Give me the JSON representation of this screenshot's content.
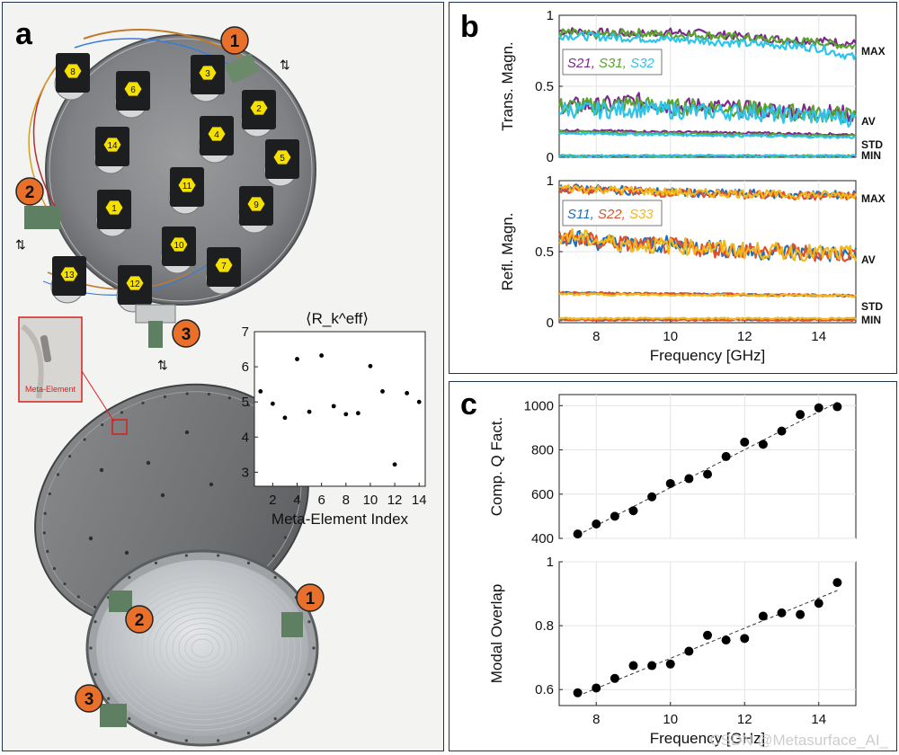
{
  "panel_a": {
    "letter": "a",
    "port_labels": [
      "1",
      "2",
      "3"
    ],
    "meta_element_label": "Meta-Element",
    "element_numbers": [
      "1",
      "2",
      "3",
      "4",
      "5",
      "6",
      "7",
      "8",
      "9",
      "10",
      "11",
      "12",
      "13",
      "14"
    ],
    "colors": {
      "port_badge": "#e8702a",
      "hex_badge": "#f5e000",
      "inset_border": "#d42020"
    }
  },
  "panel_b": {
    "letter": "b",
    "legend_trans": [
      "S21",
      "S31",
      "S32"
    ],
    "legend_refl": [
      "S11",
      "S22",
      "S33"
    ],
    "stat_labels": [
      "MAX",
      "AV",
      "STD",
      "MIN"
    ],
    "colors": {
      "S21": "#7b2a8c",
      "S31": "#5aa22c",
      "S32": "#2ec4ea",
      "S11": "#1f6fb5",
      "S22": "#e0502a",
      "S33": "#f0b81c"
    }
  },
  "panel_c": {
    "letter": "c"
  },
  "watermark": "CSDN @Metasurface_AI_",
  "chart_data": [
    {
      "type": "scatter",
      "id": "a_inset",
      "title": "⟨R_k^eff⟩",
      "xlabel": "Meta-Element Index",
      "ylabel": "",
      "x": [
        1,
        2,
        3,
        4,
        5,
        6,
        7,
        8,
        9,
        10,
        11,
        12,
        13,
        14
      ],
      "y": [
        5.3,
        4.95,
        4.55,
        6.22,
        4.72,
        6.32,
        4.88,
        4.65,
        4.68,
        6.02,
        5.3,
        3.22,
        5.25,
        5.0
      ],
      "xlim": [
        0.5,
        14.5
      ],
      "ylim": [
        2.6,
        7
      ],
      "xticks": [
        "2",
        "4",
        "6",
        "8",
        "10",
        "12",
        "14"
      ],
      "yticks": [
        "3",
        "4",
        "5",
        "6",
        "7"
      ]
    },
    {
      "type": "line",
      "id": "b_trans",
      "xlabel": "",
      "ylabel": "Trans. Magn.",
      "xlim": [
        7,
        15
      ],
      "ylim": [
        0,
        1
      ],
      "yticks": [
        "0",
        "0.5",
        "1"
      ],
      "series": [
        {
          "name": "S21 MAX",
          "x": [
            7,
            8,
            9,
            10,
            11,
            12,
            13,
            14,
            15
          ],
          "values": [
            0.89,
            0.88,
            0.87,
            0.88,
            0.87,
            0.85,
            0.83,
            0.82,
            0.8
          ]
        },
        {
          "name": "S31 MAX",
          "x": [
            7,
            8,
            9,
            10,
            11,
            12,
            13,
            14,
            15
          ],
          "values": [
            0.88,
            0.86,
            0.88,
            0.86,
            0.86,
            0.84,
            0.82,
            0.81,
            0.78
          ]
        },
        {
          "name": "S32 MAX",
          "x": [
            7,
            8,
            9,
            10,
            11,
            12,
            13,
            14,
            15
          ],
          "values": [
            0.86,
            0.85,
            0.84,
            0.83,
            0.82,
            0.8,
            0.79,
            0.77,
            0.7
          ]
        },
        {
          "name": "S21 AV",
          "x": [
            7,
            8,
            9,
            10,
            11,
            12,
            13,
            14,
            15
          ],
          "values": [
            0.37,
            0.36,
            0.4,
            0.36,
            0.36,
            0.34,
            0.33,
            0.32,
            0.3
          ]
        },
        {
          "name": "S31 AV",
          "x": [
            7,
            8,
            9,
            10,
            11,
            12,
            13,
            14,
            15
          ],
          "values": [
            0.36,
            0.36,
            0.38,
            0.35,
            0.36,
            0.34,
            0.32,
            0.31,
            0.29
          ]
        },
        {
          "name": "S32 AV",
          "x": [
            7,
            8,
            9,
            10,
            11,
            12,
            13,
            14,
            15
          ],
          "values": [
            0.34,
            0.33,
            0.34,
            0.33,
            0.32,
            0.32,
            0.3,
            0.29,
            0.27
          ]
        },
        {
          "name": "S21 STD",
          "x": [
            7,
            15
          ],
          "values": [
            0.19,
            0.16
          ]
        },
        {
          "name": "S31 STD",
          "x": [
            7,
            15
          ],
          "values": [
            0.18,
            0.15
          ]
        },
        {
          "name": "S32 STD",
          "x": [
            7,
            15
          ],
          "values": [
            0.17,
            0.14
          ]
        },
        {
          "name": "S21 MIN",
          "x": [
            7,
            15
          ],
          "values": [
            0.01,
            0.01
          ]
        },
        {
          "name": "S31 MIN",
          "x": [
            7,
            15
          ],
          "values": [
            0.01,
            0.01
          ]
        },
        {
          "name": "S32 MIN",
          "x": [
            7,
            15
          ],
          "values": [
            0.01,
            0.01
          ]
        }
      ]
    },
    {
      "type": "line",
      "id": "b_refl",
      "xlabel": "Frequency [GHz]",
      "ylabel": "Refl. Magn.",
      "xlim": [
        7,
        15
      ],
      "ylim": [
        0,
        1
      ],
      "xticks": [
        "8",
        "10",
        "12",
        "14"
      ],
      "yticks": [
        "0",
        "0.5",
        "1"
      ],
      "series": [
        {
          "name": "S11 MAX",
          "x": [
            7,
            8,
            9,
            10,
            11,
            12,
            13,
            14,
            15
          ],
          "values": [
            0.95,
            0.94,
            0.93,
            0.92,
            0.91,
            0.91,
            0.9,
            0.9,
            0.9
          ]
        },
        {
          "name": "S22 MAX",
          "x": [
            7,
            8,
            9,
            10,
            11,
            12,
            13,
            14,
            15
          ],
          "values": [
            0.94,
            0.93,
            0.93,
            0.91,
            0.91,
            0.9,
            0.9,
            0.89,
            0.89
          ]
        },
        {
          "name": "S33 MAX",
          "x": [
            7,
            8,
            9,
            10,
            11,
            12,
            13,
            14,
            15
          ],
          "values": [
            0.95,
            0.94,
            0.93,
            0.92,
            0.91,
            0.91,
            0.9,
            0.9,
            0.9
          ]
        },
        {
          "name": "S11 AV",
          "x": [
            7,
            8,
            9,
            10,
            11,
            12,
            13,
            14,
            15
          ],
          "values": [
            0.62,
            0.57,
            0.55,
            0.55,
            0.53,
            0.5,
            0.5,
            0.49,
            0.47
          ]
        },
        {
          "name": "S22 AV",
          "x": [
            7,
            8,
            9,
            10,
            11,
            12,
            13,
            14,
            15
          ],
          "values": [
            0.61,
            0.57,
            0.55,
            0.54,
            0.52,
            0.51,
            0.5,
            0.49,
            0.48
          ]
        },
        {
          "name": "S33 AV",
          "x": [
            7,
            8,
            9,
            10,
            11,
            12,
            13,
            14,
            15
          ],
          "values": [
            0.62,
            0.58,
            0.55,
            0.54,
            0.53,
            0.51,
            0.5,
            0.49,
            0.48
          ]
        },
        {
          "name": "S11 STD",
          "x": [
            7,
            15
          ],
          "values": [
            0.21,
            0.19
          ]
        },
        {
          "name": "S22 STD",
          "x": [
            7,
            15
          ],
          "values": [
            0.21,
            0.19
          ]
        },
        {
          "name": "S33 STD",
          "x": [
            7,
            15
          ],
          "values": [
            0.2,
            0.19
          ]
        },
        {
          "name": "S11 MIN",
          "x": [
            7,
            15
          ],
          "values": [
            0.02,
            0.02
          ]
        },
        {
          "name": "S22 MIN",
          "x": [
            7,
            15
          ],
          "values": [
            0.02,
            0.02
          ]
        },
        {
          "name": "S33 MIN",
          "x": [
            7,
            15
          ],
          "values": [
            0.03,
            0.03
          ]
        }
      ]
    },
    {
      "type": "scatter",
      "id": "c_q",
      "xlabel": "",
      "ylabel": "Comp. Q Fact.",
      "x": [
        7.5,
        8,
        8.5,
        9,
        9.5,
        10,
        10.5,
        11,
        11.5,
        12,
        12.5,
        13,
        13.5,
        14,
        14.5
      ],
      "y": [
        420,
        465,
        500,
        525,
        588,
        648,
        670,
        690,
        770,
        835,
        825,
        885,
        960,
        990,
        995
      ],
      "xlim": [
        7,
        15
      ],
      "ylim": [
        400,
        1050
      ],
      "yticks": [
        "400",
        "600",
        "800",
        "1000"
      ],
      "fit": {
        "x": [
          7.5,
          14.5
        ],
        "y": [
          415,
          1015
        ]
      }
    },
    {
      "type": "scatter",
      "id": "c_overlap",
      "xlabel": "Frequency [GHz]",
      "ylabel": "Modal Overlap",
      "x": [
        7.5,
        8,
        8.5,
        9,
        9.5,
        10,
        10.5,
        11,
        11.5,
        12,
        12.5,
        13,
        13.5,
        14,
        14.5
      ],
      "y": [
        0.59,
        0.605,
        0.635,
        0.675,
        0.675,
        0.68,
        0.72,
        0.77,
        0.755,
        0.76,
        0.83,
        0.84,
        0.835,
        0.87,
        0.935
      ],
      "xlim": [
        7,
        15
      ],
      "ylim": [
        0.55,
        1.0
      ],
      "xticks": [
        "8",
        "10",
        "12",
        "14"
      ],
      "yticks": [
        "0.6",
        "0.8",
        "1"
      ],
      "fit": {
        "x": [
          7.5,
          14.5
        ],
        "y": [
          0.58,
          0.91
        ]
      }
    }
  ]
}
